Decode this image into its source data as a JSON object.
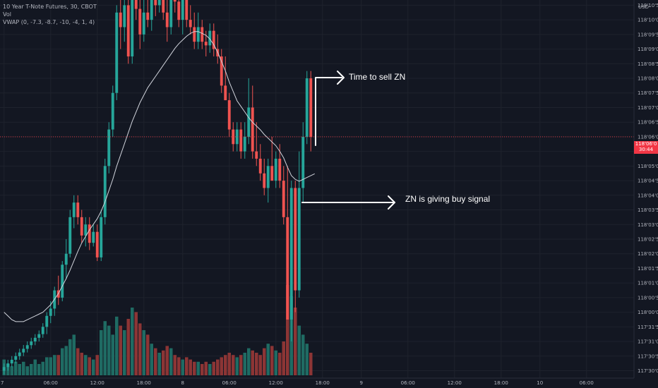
{
  "legend": {
    "symbol": "10 Year T-Note Futures, 30, CBOT",
    "vol": "Vol",
    "vwap": "VWAP (0, -7.3, -8.7, -10, -4, 1, 4)"
  },
  "annotations": {
    "sell": "Time to sell ZN",
    "buy": "ZN is giving buy signal"
  },
  "price_tag": {
    "price": "118'06'0",
    "countdown": "30:44"
  },
  "currency": "USD",
  "colors": {
    "background": "#131722",
    "up": "#26a69a",
    "down": "#ef5350",
    "vol_up": "#1f6b63",
    "vol_down": "#8c3535",
    "vwap": "#d1d4dc",
    "annotation": "#ffffff",
    "last_price": "#f23645"
  },
  "chart_data": {
    "type": "candlestick",
    "symbol": "10 Year T-Note Futures, 30, CBOT",
    "interval": "30",
    "price_unit": "32nds with quarter-32nd fraction (e.g. 118'06'0)",
    "y_ticks": [
      "118'10'5",
      "118'10'0",
      "118'09'5",
      "118'09'0",
      "118'08'5",
      "118'08'0",
      "118'07'5",
      "118'07'0",
      "118'06'5",
      "118'06'0",
      "118'05'5",
      "118'05'0",
      "118'04'5",
      "118'04'0",
      "118'03'5",
      "118'03'0",
      "118'02'5",
      "118'02'0",
      "118'01'5",
      "118'01'0",
      "118'00'5",
      "118'00'0",
      "117'31'5",
      "117'31'0",
      "117'30'5",
      "117'30'0"
    ],
    "x_ticks": [
      {
        "label": "7",
        "bar": 0
      },
      {
        "label": "06:00",
        "bar": 12
      },
      {
        "label": "12:00",
        "bar": 24
      },
      {
        "label": "18:00",
        "bar": 36
      },
      {
        "label": "8",
        "bar": 46
      },
      {
        "label": "06:00",
        "bar": 58
      },
      {
        "label": "12:00",
        "bar": 70
      },
      {
        "label": "18:00",
        "bar": 82
      },
      {
        "label": "9",
        "bar": 92
      },
      {
        "label": "06:00",
        "bar": 104
      },
      {
        "label": "12:00",
        "bar": 116
      },
      {
        "label": "18:00",
        "bar": 128
      },
      {
        "label": "10",
        "bar": 138
      },
      {
        "label": "06:00",
        "bar": 150
      }
    ],
    "last_price": 118.1875,
    "candles": [
      {
        "o": 117.9375,
        "h": 117.9452,
        "l": 117.9336,
        "c": 117.9414,
        "v": 7
      },
      {
        "o": 117.9414,
        "h": 117.9492,
        "l": 117.9375,
        "c": 117.9453,
        "v": 5
      },
      {
        "o": 117.9453,
        "h": 117.9531,
        "l": 117.9414,
        "c": 117.9492,
        "v": 4
      },
      {
        "o": 117.9492,
        "h": 117.957,
        "l": 117.9453,
        "c": 117.9531,
        "v": 6
      },
      {
        "o": 117.9531,
        "h": 117.961,
        "l": 117.9492,
        "c": 117.957,
        "v": 5
      },
      {
        "o": 117.957,
        "h": 117.965,
        "l": 117.9531,
        "c": 117.9609,
        "v": 6
      },
      {
        "o": 117.9609,
        "h": 117.9688,
        "l": 117.957,
        "c": 117.9648,
        "v": 4
      },
      {
        "o": 117.9648,
        "h": 117.9727,
        "l": 117.9609,
        "c": 117.9688,
        "v": 5
      },
      {
        "o": 117.9688,
        "h": 117.9766,
        "l": 117.9648,
        "c": 117.9727,
        "v": 7
      },
      {
        "o": 117.9727,
        "h": 117.9805,
        "l": 117.9688,
        "c": 117.9766,
        "v": 5
      },
      {
        "o": 117.9766,
        "h": 117.9883,
        "l": 117.9727,
        "c": 117.9844,
        "v": 6
      },
      {
        "o": 117.9844,
        "h": 118.0,
        "l": 117.9766,
        "c": 117.9961,
        "v": 8
      },
      {
        "o": 117.9961,
        "h": 118.0117,
        "l": 117.9883,
        "c": 118.0039,
        "v": 8
      },
      {
        "o": 118.0039,
        "h": 118.0273,
        "l": 117.9961,
        "c": 118.0234,
        "v": 9
      },
      {
        "o": 118.0234,
        "h": 118.0391,
        "l": 118.0078,
        "c": 118.0156,
        "v": 9
      },
      {
        "o": 118.0156,
        "h": 118.0547,
        "l": 118.0117,
        "c": 118.0508,
        "v": 12
      },
      {
        "o": 118.0508,
        "h": 118.0781,
        "l": 118.0352,
        "c": 118.0625,
        "v": 13
      },
      {
        "o": 118.0625,
        "h": 118.1094,
        "l": 118.0586,
        "c": 118.1016,
        "v": 16
      },
      {
        "o": 118.1016,
        "h": 118.125,
        "l": 118.0898,
        "c": 118.1172,
        "v": 18
      },
      {
        "o": 118.1172,
        "h": 118.125,
        "l": 118.0938,
        "c": 118.1016,
        "v": 12
      },
      {
        "o": 118.1016,
        "h": 118.1094,
        "l": 118.0742,
        "c": 118.082,
        "v": 10
      },
      {
        "o": 118.082,
        "h": 118.1016,
        "l": 118.0703,
        "c": 118.0938,
        "v": 9
      },
      {
        "o": 118.0938,
        "h": 118.1016,
        "l": 118.0664,
        "c": 118.0742,
        "v": 8
      },
      {
        "o": 118.0742,
        "h": 118.0938,
        "l": 118.0703,
        "c": 118.0859,
        "v": 7
      },
      {
        "o": 118.0859,
        "h": 118.0938,
        "l": 118.0547,
        "c": 118.0586,
        "v": 9
      },
      {
        "o": 118.0586,
        "h": 118.1094,
        "l": 118.0547,
        "c": 118.1016,
        "v": 20
      },
      {
        "o": 118.1016,
        "h": 118.1641,
        "l": 118.0938,
        "c": 118.1563,
        "v": 24
      },
      {
        "o": 118.1563,
        "h": 118.2031,
        "l": 118.1484,
        "c": 118.1953,
        "v": 22
      },
      {
        "o": 118.1953,
        "h": 118.2422,
        "l": 118.1875,
        "c": 118.2344,
        "v": 18
      },
      {
        "o": 118.2344,
        "h": 118.3281,
        "l": 118.2266,
        "c": 118.3203,
        "v": 26
      },
      {
        "o": 118.3203,
        "h": 118.3359,
        "l": 118.2813,
        "c": 118.3047,
        "v": 22
      },
      {
        "o": 118.3047,
        "h": 118.3359,
        "l": 118.2891,
        "c": 118.3281,
        "v": 20
      },
      {
        "o": 118.3281,
        "h": 118.3438,
        "l": 118.2656,
        "c": 118.2734,
        "v": 25
      },
      {
        "o": 118.2734,
        "h": 118.3438,
        "l": 118.2656,
        "c": 118.3359,
        "v": 30
      },
      {
        "o": 118.3359,
        "h": 118.3438,
        "l": 118.3125,
        "c": 118.3242,
        "v": 28
      },
      {
        "o": 118.3242,
        "h": 118.3438,
        "l": 118.2813,
        "c": 118.2969,
        "v": 23
      },
      {
        "o": 118.2969,
        "h": 118.3438,
        "l": 118.2891,
        "c": 118.3203,
        "v": 20
      },
      {
        "o": 118.3203,
        "h": 118.3438,
        "l": 118.3047,
        "c": 118.3125,
        "v": 18
      },
      {
        "o": 118.3125,
        "h": 118.3438,
        "l": 118.3008,
        "c": 118.3359,
        "v": 14
      },
      {
        "o": 118.3359,
        "h": 118.3438,
        "l": 118.3164,
        "c": 118.3281,
        "v": 12
      },
      {
        "o": 118.3281,
        "h": 118.3438,
        "l": 118.3203,
        "c": 118.3438,
        "v": 10
      },
      {
        "o": 118.3438,
        "h": 118.3438,
        "l": 118.3125,
        "c": 118.3203,
        "v": 11
      },
      {
        "o": 118.3203,
        "h": 118.3438,
        "l": 118.2891,
        "c": 118.3047,
        "v": 13
      },
      {
        "o": 118.3047,
        "h": 118.3438,
        "l": 118.2969,
        "c": 118.3359,
        "v": 12
      },
      {
        "o": 118.3359,
        "h": 118.3438,
        "l": 118.3203,
        "c": 118.332,
        "v": 9
      },
      {
        "o": 118.332,
        "h": 118.3438,
        "l": 118.3047,
        "c": 118.3125,
        "v": 8
      },
      {
        "o": 118.3125,
        "h": 118.3438,
        "l": 118.2969,
        "c": 118.3359,
        "v": 7
      },
      {
        "o": 118.3359,
        "h": 118.3438,
        "l": 118.3047,
        "c": 118.3125,
        "v": 8
      },
      {
        "o": 118.3125,
        "h": 118.3281,
        "l": 118.2969,
        "c": 118.3047,
        "v": 7
      },
      {
        "o": 118.3047,
        "h": 118.3203,
        "l": 118.2813,
        "c": 118.2891,
        "v": 6
      },
      {
        "o": 118.2891,
        "h": 118.3203,
        "l": 118.2813,
        "c": 118.3047,
        "v": 6
      },
      {
        "o": 118.3047,
        "h": 118.3125,
        "l": 118.2813,
        "c": 118.2891,
        "v": 5
      },
      {
        "o": 118.2891,
        "h": 118.3008,
        "l": 118.2734,
        "c": 118.2852,
        "v": 6
      },
      {
        "o": 118.2852,
        "h": 118.3086,
        "l": 118.2773,
        "c": 118.3008,
        "v": 5
      },
      {
        "o": 118.3008,
        "h": 118.3086,
        "l": 118.2734,
        "c": 118.2813,
        "v": 6
      },
      {
        "o": 118.2813,
        "h": 118.2969,
        "l": 118.2656,
        "c": 118.2734,
        "v": 7
      },
      {
        "o": 118.2734,
        "h": 118.2813,
        "l": 118.2344,
        "c": 118.2422,
        "v": 8
      },
      {
        "o": 118.2422,
        "h": 118.2734,
        "l": 118.2266,
        "c": 118.2266,
        "v": 9
      },
      {
        "o": 118.2266,
        "h": 118.2344,
        "l": 118.1875,
        "c": 118.1953,
        "v": 10
      },
      {
        "o": 118.1953,
        "h": 118.2031,
        "l": 118.1719,
        "c": 118.1797,
        "v": 9
      },
      {
        "o": 118.1797,
        "h": 118.2031,
        "l": 118.1719,
        "c": 118.1953,
        "v": 8
      },
      {
        "o": 118.1953,
        "h": 118.2031,
        "l": 118.1641,
        "c": 118.1719,
        "v": 9
      },
      {
        "o": 118.1719,
        "h": 118.2031,
        "l": 118.1641,
        "c": 118.1875,
        "v": 10
      },
      {
        "o": 118.1875,
        "h": 118.25,
        "l": 118.1797,
        "c": 118.2188,
        "v": 12
      },
      {
        "o": 118.2188,
        "h": 118.2422,
        "l": 118.1641,
        "c": 118.1719,
        "v": 11
      },
      {
        "o": 118.1719,
        "h": 118.2031,
        "l": 118.1563,
        "c": 118.1641,
        "v": 10
      },
      {
        "o": 118.1641,
        "h": 118.1797,
        "l": 118.1406,
        "c": 118.1484,
        "v": 9
      },
      {
        "o": 118.1484,
        "h": 118.1641,
        "l": 118.125,
        "c": 118.1328,
        "v": 12
      },
      {
        "o": 118.1328,
        "h": 118.1641,
        "l": 118.1172,
        "c": 118.1563,
        "v": 14
      },
      {
        "o": 118.1563,
        "h": 118.1875,
        "l": 118.1406,
        "c": 118.1406,
        "v": 13
      },
      {
        "o": 118.1406,
        "h": 118.1719,
        "l": 118.1328,
        "c": 118.1641,
        "v": 11
      },
      {
        "o": 118.1641,
        "h": 118.1797,
        "l": 118.1328,
        "c": 118.1406,
        "v": 10
      },
      {
        "o": 118.1406,
        "h": 118.1563,
        "l": 118.0938,
        "c": 118.1016,
        "v": 15
      },
      {
        "o": 118.1016,
        "h": 118.1563,
        "l": 117.9922,
        "c": 117.9922,
        "v": 40
      },
      {
        "o": 117.9922,
        "h": 118.1406,
        "l": 117.9688,
        "c": 118.1328,
        "v": 35
      },
      {
        "o": 118.1328,
        "h": 118.1406,
        "l": 118.0,
        "c": 118.0234,
        "v": 30
      },
      {
        "o": 118.0234,
        "h": 118.1719,
        "l": 118.0156,
        "c": 118.1328,
        "v": 22
      },
      {
        "o": 118.1328,
        "h": 118.2031,
        "l": 118.1172,
        "c": 118.1875,
        "v": 18
      },
      {
        "o": 118.1875,
        "h": 118.2578,
        "l": 118.1797,
        "c": 118.25,
        "v": 14
      },
      {
        "o": 118.25,
        "h": 118.2578,
        "l": 118.1719,
        "c": 118.1875,
        "v": 10
      }
    ],
    "vwap": [
      118.0,
      117.996,
      117.992,
      117.99,
      117.99,
      117.99,
      117.992,
      117.994,
      117.996,
      117.998,
      118.0,
      118.004,
      118.008,
      118.014,
      118.02,
      118.028,
      118.036,
      118.045,
      118.055,
      118.065,
      118.074,
      118.081,
      118.088,
      118.094,
      118.1,
      118.108,
      118.118,
      118.13,
      118.142,
      118.156,
      118.168,
      118.18,
      118.192,
      118.204,
      118.214,
      118.224,
      118.232,
      118.24,
      118.246,
      118.252,
      118.258,
      118.264,
      118.27,
      118.276,
      118.282,
      118.287,
      118.291,
      118.295,
      118.298,
      118.3,
      118.3,
      118.298,
      118.296,
      118.292,
      118.286,
      118.278,
      118.268,
      118.258,
      118.246,
      118.236,
      118.226,
      118.22,
      118.214,
      118.208,
      118.203,
      118.199,
      118.195,
      118.19,
      118.186,
      118.182,
      118.178,
      118.172,
      118.165,
      118.155,
      118.146,
      118.142,
      118.14,
      118.142,
      118.144,
      118.146,
      118.148
    ]
  }
}
